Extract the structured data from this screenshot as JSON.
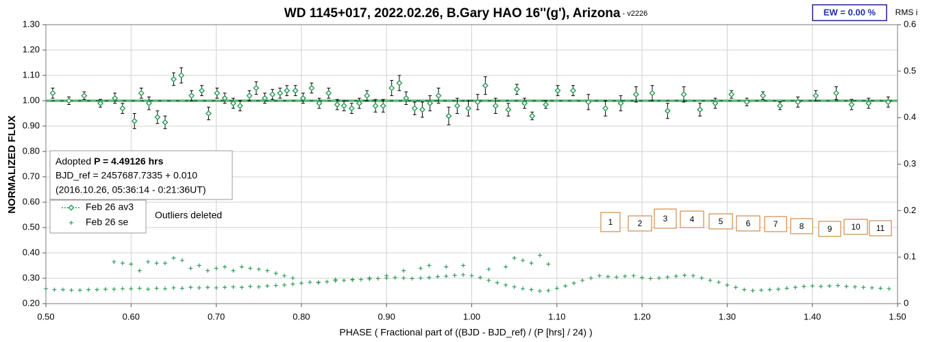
{
  "chart_data": {
    "type": "scatter",
    "title": "WD 1145+017, 2022.02.26, B.Gary HAO 16''(g'), Arizona",
    "title_suffix": " - v2226",
    "x_label": "PHASE ( Fractional part of ((BJD - BJD_ref) / (P [hrs] / 24) )",
    "y_label": "NORMALIZED FLUX",
    "y2_label": "RMS i",
    "ew_label": "EW = 0.00 %",
    "info": {
      "period_prefix": "Adopted ",
      "period": "P = 4.49126 hrs",
      "bjd_ref": "BJD_ref = 2457687.7335 + 0.010",
      "date": "(2016.10.26, 05:36:14 - 0:21:36UT)"
    },
    "note": "Outliers deleted",
    "boxes": [
      "1",
      "2",
      "3",
      "4",
      "5",
      "6",
      "7",
      "8",
      "9",
      "10",
      "11"
    ],
    "reference_line": {
      "value": 1.0,
      "color": "#1d7a3c"
    },
    "xlim": [
      0.5,
      1.5
    ],
    "xticks": [
      {
        "value": 0.5,
        "label": "0.50"
      },
      {
        "value": 0.6,
        "label": "0.60"
      },
      {
        "value": 0.7,
        "label": "0.70"
      },
      {
        "value": 0.8,
        "label": "0.80"
      },
      {
        "value": 0.9,
        "label": "0.90"
      },
      {
        "value": 1.0,
        "label": "1.00"
      },
      {
        "value": 1.1,
        "label": "1.10"
      },
      {
        "value": 1.2,
        "label": "1.20"
      },
      {
        "value": 1.3,
        "label": "1.30"
      },
      {
        "value": 1.4,
        "label": "1.40"
      },
      {
        "value": 1.5,
        "label": "1.50"
      }
    ],
    "ylim": [
      0.2,
      1.3
    ],
    "yticks": [
      {
        "value": 0.2,
        "label": "0.20"
      },
      {
        "value": 0.3,
        "label": "0.30"
      },
      {
        "value": 0.4,
        "label": "0.40"
      },
      {
        "value": 0.5,
        "label": "0.50"
      },
      {
        "value": 0.6,
        "label": "0.60"
      },
      {
        "value": 0.7,
        "label": "0.70"
      },
      {
        "value": 0.8,
        "label": "0.80"
      },
      {
        "value": 0.9,
        "label": "0.90"
      },
      {
        "value": 1.0,
        "label": "1.00"
      },
      {
        "value": 1.1,
        "label": "1.10"
      },
      {
        "value": 1.2,
        "label": "1.20"
      },
      {
        "value": 1.3,
        "label": "1.30"
      }
    ],
    "y2lim": [
      0,
      0.6
    ],
    "y2ticks": [
      0,
      0.1,
      0.2,
      0.3,
      0.4,
      0.5,
      0.6
    ],
    "grid": true,
    "series": [
      {
        "name": "Feb 26 av3",
        "color": "#2e9e5a",
        "marker": "diamond",
        "x": [
          0.508,
          0.527,
          0.545,
          0.564,
          0.581,
          0.59,
          0.604,
          0.612,
          0.621,
          0.631,
          0.64,
          0.65,
          0.659,
          0.671,
          0.683,
          0.691,
          0.701,
          0.71,
          0.72,
          0.728,
          0.739,
          0.747,
          0.757,
          0.766,
          0.775,
          0.783,
          0.793,
          0.802,
          0.812,
          0.821,
          0.832,
          0.842,
          0.85,
          0.859,
          0.868,
          0.877,
          0.887,
          0.896,
          0.906,
          0.915,
          0.923,
          0.933,
          0.942,
          0.951,
          0.961,
          0.973,
          0.983,
          0.996,
          1.007,
          1.016,
          1.028,
          1.043,
          1.053,
          1.062,
          1.071,
          1.087,
          1.101,
          1.119,
          1.137,
          1.157,
          1.175,
          1.193,
          1.212,
          1.23,
          1.249,
          1.268,
          1.286,
          1.305,
          1.323,
          1.342,
          1.362,
          1.383,
          1.404,
          1.428,
          1.446,
          1.466,
          1.489
        ],
        "values": [
          1.03,
          1.0,
          1.02,
          0.99,
          1.01,
          0.97,
          0.92,
          1.03,
          0.99,
          0.935,
          0.915,
          1.085,
          1.1,
          1.02,
          1.04,
          0.95,
          1.03,
          1.01,
          0.99,
          0.98,
          1.02,
          1.05,
          1.01,
          1.025,
          1.03,
          1.04,
          1.04,
          1.01,
          1.05,
          0.99,
          1.03,
          0.985,
          0.98,
          0.97,
          0.99,
          1.02,
          0.98,
          0.98,
          1.05,
          1.07,
          1.01,
          0.97,
          0.965,
          0.99,
          1.02,
          0.94,
          0.98,
          0.97,
          0.995,
          1.06,
          0.98,
          0.965,
          1.045,
          0.99,
          0.94,
          0.985,
          1.04,
          1.04,
          0.995,
          0.97,
          0.99,
          1.025,
          1.03,
          0.96,
          1.025,
          0.965,
          0.99,
          1.025,
          0.995,
          1.02,
          0.98,
          0.995,
          1.02,
          1.03,
          0.985,
          0.99,
          0.995
        ],
        "errors": [
          0.02,
          0.015,
          0.015,
          0.015,
          0.02,
          0.02,
          0.03,
          0.02,
          0.025,
          0.025,
          0.025,
          0.025,
          0.03,
          0.02,
          0.02,
          0.025,
          0.02,
          0.02,
          0.02,
          0.02,
          0.02,
          0.025,
          0.02,
          0.02,
          0.02,
          0.02,
          0.02,
          0.02,
          0.02,
          0.02,
          0.02,
          0.02,
          0.02,
          0.02,
          0.02,
          0.02,
          0.025,
          0.025,
          0.03,
          0.03,
          0.025,
          0.025,
          0.03,
          0.03,
          0.03,
          0.035,
          0.03,
          0.03,
          0.03,
          0.035,
          0.03,
          0.025,
          0.02,
          0.02,
          0.015,
          0.015,
          0.02,
          0.02,
          0.03,
          0.03,
          0.03,
          0.03,
          0.03,
          0.03,
          0.03,
          0.025,
          0.02,
          0.015,
          0.015,
          0.015,
          0.015,
          0.02,
          0.02,
          0.025,
          0.02,
          0.02,
          0.02
        ]
      },
      {
        "name": "Feb 26 se",
        "color": "#2e9e5a",
        "marker": "plus",
        "axis": "y2",
        "x": [
          0.5,
          0.51,
          0.52,
          0.53,
          0.54,
          0.55,
          0.56,
          0.57,
          0.58,
          0.59,
          0.6,
          0.61,
          0.62,
          0.63,
          0.64,
          0.65,
          0.66,
          0.67,
          0.68,
          0.69,
          0.7,
          0.71,
          0.72,
          0.73,
          0.74,
          0.75,
          0.76,
          0.77,
          0.78,
          0.79,
          0.8,
          0.81,
          0.82,
          0.83,
          0.84,
          0.85,
          0.86,
          0.87,
          0.88,
          0.89,
          0.9,
          0.91,
          0.92,
          0.93,
          0.94,
          0.95,
          0.96,
          0.97,
          0.98,
          0.99,
          1.0,
          1.01,
          1.02,
          1.03,
          1.04,
          1.05,
          1.06,
          1.07,
          1.08,
          1.09,
          1.1,
          1.11,
          1.12,
          1.13,
          1.14,
          1.15,
          1.16,
          1.17,
          1.18,
          1.19,
          1.2,
          1.21,
          1.22,
          1.23,
          1.24,
          1.25,
          1.26,
          1.27,
          1.28,
          1.29,
          1.3,
          1.31,
          1.32,
          1.33,
          1.34,
          1.35,
          1.36,
          1.37,
          1.38,
          1.39,
          1.4,
          1.41,
          1.42,
          1.43,
          1.44,
          1.45,
          1.46,
          1.47,
          1.48,
          1.49,
          0.58,
          0.59,
          0.6,
          0.61,
          0.62,
          0.63,
          0.64,
          0.65,
          0.66,
          0.67,
          0.68,
          0.69,
          0.7,
          0.71,
          0.72,
          0.73,
          0.74,
          0.75,
          0.76,
          0.77,
          0.78,
          0.79,
          0.82,
          0.84,
          0.86,
          0.88,
          0.9,
          0.92,
          0.94,
          0.95,
          0.97,
          0.99,
          1.02,
          1.04,
          1.05,
          1.06,
          1.07,
          1.08,
          1.09
        ],
        "values": [
          0.032,
          0.03,
          0.03,
          0.029,
          0.029,
          0.03,
          0.03,
          0.031,
          0.031,
          0.032,
          0.032,
          0.033,
          0.031,
          0.033,
          0.032,
          0.034,
          0.033,
          0.035,
          0.034,
          0.035,
          0.034,
          0.035,
          0.036,
          0.035,
          0.037,
          0.036,
          0.038,
          0.039,
          0.04,
          0.042,
          0.044,
          0.046,
          0.045,
          0.047,
          0.049,
          0.05,
          0.051,
          0.052,
          0.053,
          0.054,
          0.055,
          0.056,
          0.055,
          0.054,
          0.055,
          0.056,
          0.058,
          0.059,
          0.061,
          0.062,
          0.06,
          0.056,
          0.05,
          0.045,
          0.04,
          0.036,
          0.032,
          0.03,
          0.027,
          0.028,
          0.033,
          0.038,
          0.044,
          0.05,
          0.055,
          0.06,
          0.058,
          0.057,
          0.059,
          0.06,
          0.056,
          0.054,
          0.055,
          0.057,
          0.059,
          0.061,
          0.06,
          0.055,
          0.05,
          0.046,
          0.04,
          0.035,
          0.03,
          0.028,
          0.029,
          0.03,
          0.031,
          0.033,
          0.035,
          0.037,
          0.038,
          0.037,
          0.038,
          0.039,
          0.037,
          0.036,
          0.035,
          0.034,
          0.033,
          0.032,
          0.09,
          0.087,
          0.085,
          0.071,
          0.09,
          0.087,
          0.087,
          0.098,
          0.093,
          0.076,
          0.082,
          0.071,
          0.076,
          0.079,
          0.071,
          0.079,
          0.076,
          0.074,
          0.071,
          0.065,
          0.06,
          0.055,
          0.046,
          0.052,
          0.052,
          0.055,
          0.06,
          0.071,
          0.076,
          0.082,
          0.079,
          0.082,
          0.074,
          0.079,
          0.098,
          0.093,
          0.087,
          0.104,
          0.085
        ]
      }
    ]
  }
}
